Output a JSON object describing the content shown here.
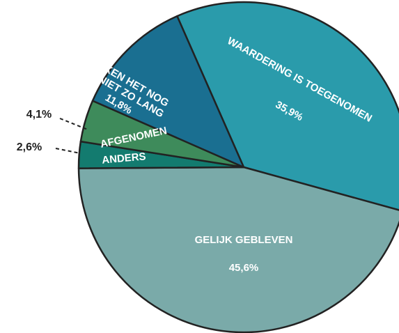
{
  "chart_data": {
    "type": "pie",
    "categories": [
      "WAARDERING IS TOEGENOMEN",
      "GELIJK GEBLEVEN",
      "ANDERS",
      "AFGENOMEN",
      "KEN HET NOG NIET ZO LANG"
    ],
    "values": [
      35.9,
      45.6,
      2.6,
      4.1,
      11.8
    ],
    "value_labels": [
      "35,9%",
      "45,6%",
      "2,6%",
      "4,1%",
      "11,8%"
    ],
    "colors": [
      "#2a9bab",
      "#7aaaa9",
      "#137b6f",
      "#3e8b5b",
      "#1a6f91"
    ]
  }
}
